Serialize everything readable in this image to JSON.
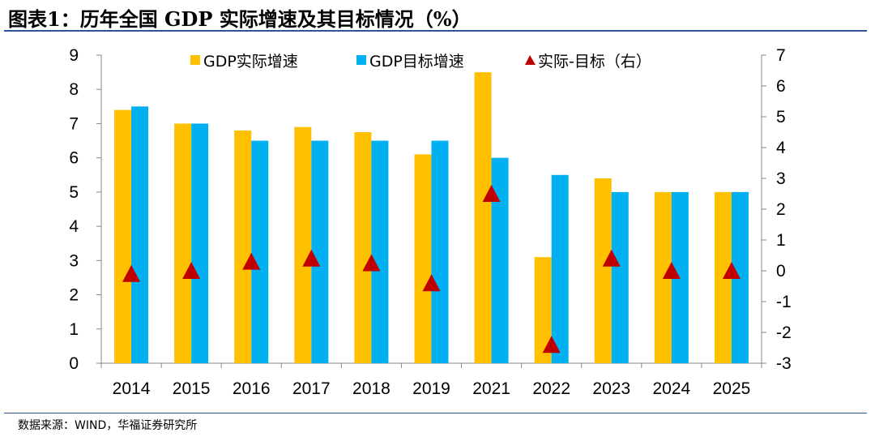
{
  "title": "图表1：历年全国 GDP 实际增速及其目标情况（%）",
  "source": "数据来源：WIND，华福证券研究所",
  "chart_data": {
    "type": "bar",
    "title": "图表1：历年全国 GDP 实际增速及其目标情况（%）",
    "categories": [
      "2014",
      "2015",
      "2016",
      "2017",
      "2018",
      "2019",
      "2021",
      "2022",
      "2023",
      "2024",
      "2025"
    ],
    "series": [
      {
        "name": "GDP实际增速",
        "type": "bar",
        "axis": "left",
        "color": "#ffc000",
        "values": [
          7.4,
          7.0,
          6.8,
          6.9,
          6.75,
          6.1,
          8.5,
          3.1,
          5.4,
          5.0,
          5.0
        ]
      },
      {
        "name": "GDP目标增速",
        "type": "bar",
        "axis": "left",
        "color": "#00b0f0",
        "values": [
          7.5,
          7.0,
          6.5,
          6.5,
          6.5,
          6.5,
          6.0,
          5.5,
          5.0,
          5.0,
          5.0
        ]
      },
      {
        "name": "实际-目标（右）",
        "type": "scatter",
        "marker": "triangle",
        "axis": "right",
        "color": "#c00000",
        "values": [
          -0.1,
          0.0,
          0.3,
          0.4,
          0.25,
          -0.4,
          2.5,
          -2.4,
          0.4,
          0.0,
          0.0
        ]
      }
    ],
    "y_left": {
      "range": [
        0,
        9
      ],
      "ticks": [
        "0",
        "1",
        "2",
        "3",
        "4",
        "5",
        "6",
        "7",
        "8",
        "9"
      ]
    },
    "y_right": {
      "range": [
        -3,
        7
      ],
      "ticks": [
        "-3",
        "-2",
        "-1",
        "0",
        "1",
        "2",
        "3",
        "4",
        "5",
        "6",
        "7"
      ]
    },
    "legend_position": "top",
    "grid": false
  }
}
